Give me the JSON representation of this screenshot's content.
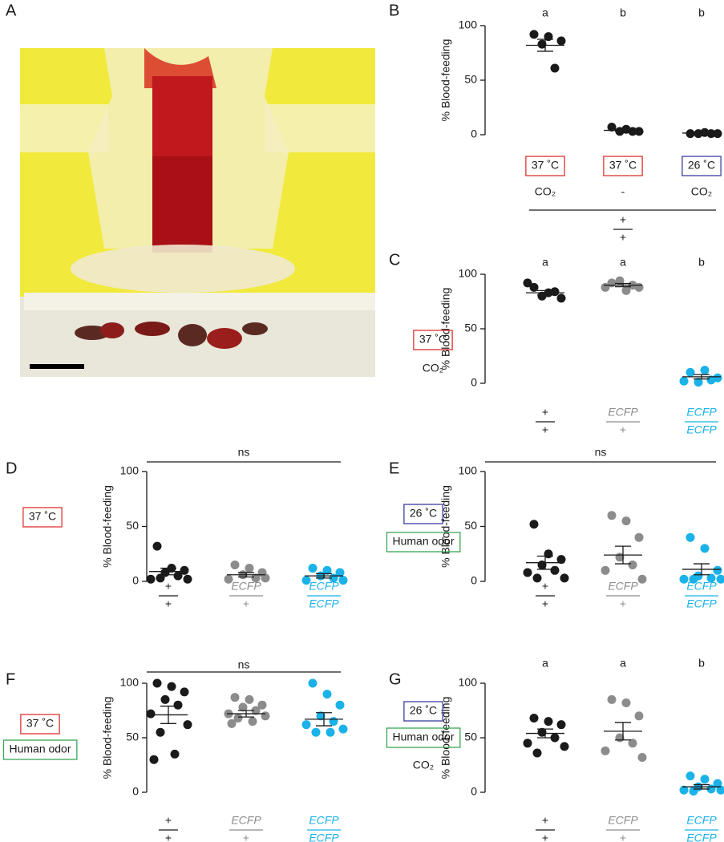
{
  "photo_panel": {
    "label": "A"
  },
  "chart_data": [
    {
      "type": "strip",
      "panel": "B",
      "ylabel": "% Blood-feeding",
      "ylim": [
        0,
        100
      ],
      "yticks": [
        0,
        50,
        100
      ],
      "letters": [
        "a",
        "b",
        "b"
      ],
      "series": [
        {
          "color": "#1a1a1a",
          "values": [
            92,
            90,
            86,
            83,
            61
          ],
          "mean": 82,
          "sem": 5.5
        },
        {
          "color": "#1a1a1a",
          "values": [
            7,
            5,
            3,
            3,
            3
          ],
          "mean": 4,
          "sem": 1
        },
        {
          "color": "#1a1a1a",
          "values": [
            1,
            2,
            1,
            1,
            1
          ],
          "mean": 1.5,
          "sem": 0.5
        }
      ],
      "column_conditions": [
        [
          {
            "label": "37 ˚C",
            "box_color": "#e0332f"
          },
          {
            "label": "CO₂"
          }
        ],
        [
          {
            "label": "37 ˚C",
            "box_color": "#e0332f"
          },
          {
            "label": "-"
          }
        ],
        [
          {
            "label": "26 ˚C",
            "box_color": "#3a3fa0"
          },
          {
            "label": "CO₂"
          }
        ]
      ],
      "genotypes": [
        {
          "top": "+",
          "bottom": "+",
          "color": "#1a1a1a"
        }
      ]
    },
    {
      "type": "strip",
      "panel": "C",
      "ylabel": "% Blood-feeding",
      "ylim": [
        0,
        100
      ],
      "yticks": [
        0,
        50,
        100
      ],
      "letters": [
        "a",
        "a",
        "b"
      ],
      "series": [
        {
          "color": "#1a1a1a",
          "values": [
            88,
            83,
            78,
            80,
            84,
            92
          ],
          "mean": 83,
          "sem": 2
        },
        {
          "color": "#8c8c8c",
          "values": [
            92,
            85,
            88,
            94,
            90,
            88
          ],
          "mean": 90,
          "sem": 1.5
        },
        {
          "color": "#1ab2e8",
          "values": [
            10,
            12,
            5,
            1,
            3,
            2
          ],
          "mean": 6,
          "sem": 2
        }
      ],
      "conditions": [
        {
          "label": "37 ˚C",
          "box_color": "#e0332f"
        },
        {
          "label": "CO₂"
        }
      ],
      "genotypes": [
        {
          "top": "+",
          "bottom": "+"
        },
        {
          "top": "ECFP",
          "bottom": "+"
        },
        {
          "top": "ECFP",
          "bottom": "ECFP"
        }
      ]
    },
    {
      "type": "strip",
      "panel": "D",
      "ylabel": "% Blood-feeding",
      "ylim": [
        0,
        100
      ],
      "yticks": [
        0,
        50,
        100
      ],
      "significance": "ns",
      "series": [
        {
          "color": "#1a1a1a",
          "values": [
            32,
            12,
            10,
            8,
            5,
            2,
            2,
            3
          ],
          "mean": 9,
          "sem": 3
        },
        {
          "color": "#8c8c8c",
          "values": [
            15,
            12,
            8,
            6,
            3,
            2,
            3
          ],
          "mean": 6,
          "sem": 2
        },
        {
          "color": "#1ab2e8",
          "values": [
            12,
            10,
            8,
            5,
            3,
            1,
            1
          ],
          "mean": 5,
          "sem": 2
        }
      ],
      "conditions": [
        {
          "label": "37 ˚C",
          "box_color": "#e0332f"
        }
      ],
      "genotypes": [
        {
          "top": "+",
          "bottom": "+"
        },
        {
          "top": "ECFP",
          "bottom": "+"
        },
        {
          "top": "ECFP",
          "bottom": "ECFP"
        }
      ]
    },
    {
      "type": "strip",
      "panel": "E",
      "ylabel": "% Blood-feeding",
      "ylim": [
        0,
        100
      ],
      "yticks": [
        0,
        50,
        100
      ],
      "significance": "ns",
      "series": [
        {
          "color": "#1a1a1a",
          "values": [
            52,
            25,
            20,
            15,
            10,
            8,
            3,
            3
          ],
          "mean": 17,
          "sem": 6
        },
        {
          "color": "#8c8c8c",
          "values": [
            60,
            55,
            40,
            22,
            15,
            10,
            2
          ],
          "mean": 24,
          "sem": 8
        },
        {
          "color": "#1ab2e8",
          "values": [
            40,
            30,
            10,
            5,
            3,
            2,
            2,
            2
          ],
          "mean": 11,
          "sem": 5
        }
      ],
      "conditions": [
        {
          "label": "26 ˚C",
          "box_color": "#3a3fa0"
        },
        {
          "label": "Human odor",
          "box_color": "#3aa655"
        }
      ],
      "genotypes": [
        {
          "top": "+",
          "bottom": "+"
        },
        {
          "top": "ECFP",
          "bottom": "+"
        },
        {
          "top": "ECFP",
          "bottom": "ECFP"
        }
      ]
    },
    {
      "type": "strip",
      "panel": "F",
      "ylabel": "% Blood-feeding",
      "ylim": [
        0,
        100
      ],
      "yticks": [
        0,
        50,
        100
      ],
      "significance": "ns",
      "series": [
        {
          "color": "#1a1a1a",
          "values": [
            100,
            97,
            92,
            85,
            80,
            72,
            62,
            55,
            35,
            30
          ],
          "mean": 71,
          "sem": 8
        },
        {
          "color": "#8c8c8c",
          "values": [
            87,
            85,
            80,
            78,
            75,
            72,
            70,
            68,
            65,
            63
          ],
          "mean": 72,
          "sem": 3
        },
        {
          "color": "#1ab2e8",
          "values": [
            100,
            90,
            80,
            70,
            65,
            62,
            58,
            55,
            55
          ],
          "mean": 67,
          "sem": 6
        }
      ],
      "conditions": [
        {
          "label": "37 ˚C",
          "box_color": "#e0332f"
        },
        {
          "label": "Human odor",
          "box_color": "#3aa655"
        }
      ],
      "genotypes": [
        {
          "top": "+",
          "bottom": "+"
        },
        {
          "top": "ECFP",
          "bottom": "+"
        },
        {
          "top": "ECFP",
          "bottom": "ECFP"
        }
      ]
    },
    {
      "type": "strip",
      "panel": "G",
      "ylabel": "% Blood-feeding",
      "ylim": [
        0,
        100
      ],
      "yticks": [
        0,
        50,
        100
      ],
      "letters": [
        "a",
        "a",
        "b"
      ],
      "series": [
        {
          "color": "#1a1a1a",
          "values": [
            68,
            65,
            62,
            55,
            50,
            45,
            42,
            36
          ],
          "mean": 54,
          "sem": 4
        },
        {
          "color": "#8c8c8c",
          "values": [
            85,
            82,
            70,
            50,
            45,
            38,
            32
          ],
          "mean": 56,
          "sem": 8
        },
        {
          "color": "#1ab2e8",
          "values": [
            15,
            12,
            8,
            5,
            3,
            2,
            2,
            1
          ],
          "mean": 5,
          "sem": 2
        }
      ],
      "conditions": [
        {
          "label": "26 ˚C",
          "box_color": "#3a3fa0"
        },
        {
          "label": "Human odor",
          "box_color": "#3aa655"
        },
        {
          "label": "CO₂"
        }
      ],
      "genotypes": [
        {
          "top": "+",
          "bottom": "+"
        },
        {
          "top": "ECFP",
          "bottom": "+"
        },
        {
          "top": "ECFP",
          "bottom": "ECFP"
        }
      ]
    }
  ]
}
